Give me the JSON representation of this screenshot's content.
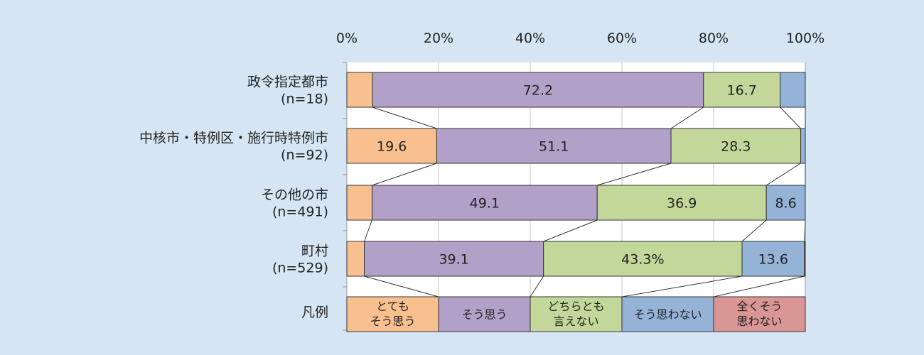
{
  "chart_data": {
    "type": "bar",
    "orientation": "horizontal",
    "stacked": "percent",
    "xlim": [
      0,
      100
    ],
    "x_ticks": [
      "0%",
      "20%",
      "40%",
      "60%",
      "80%",
      "100%"
    ],
    "grid": true,
    "categories": [
      {
        "name": "政令指定都市",
        "n": "(n=18)"
      },
      {
        "name": "中核市・特例区・施行時特例市",
        "n": "(n=92)"
      },
      {
        "name": "その他の市",
        "n": "(n=491)"
      },
      {
        "name": "町村",
        "n": "(n=529)"
      }
    ],
    "series": [
      {
        "name": "とてもそう思う",
        "lines": [
          "とても",
          "そう思う"
        ],
        "color": "#f9c08f",
        "values": [
          5.6,
          19.6,
          5.5,
          3.8
        ],
        "labels": [
          "",
          "19.6",
          "",
          ""
        ]
      },
      {
        "name": "そう思う",
        "lines": [
          "そう思う"
        ],
        "color": "#b1a0c7",
        "values": [
          72.2,
          51.1,
          49.1,
          39.1
        ],
        "labels": [
          "72.2",
          "51.1",
          "49.1",
          "39.1"
        ]
      },
      {
        "name": "どちらとも言えない",
        "lines": [
          "どちらとも",
          "言えない"
        ],
        "color": "#c4d79b",
        "values": [
          16.7,
          28.3,
          36.9,
          43.3
        ],
        "labels": [
          "16.7",
          "28.3",
          "36.9",
          "43.3%"
        ]
      },
      {
        "name": "そう思わない",
        "lines": [
          "そう思わない"
        ],
        "color": "#95b3d7",
        "values": [
          5.5,
          1.0,
          8.6,
          13.6
        ],
        "labels": [
          "",
          "",
          "8.6",
          "13.6"
        ]
      },
      {
        "name": "全くそう思わない",
        "lines": [
          "全くそう",
          "思わない"
        ],
        "color": "#da9694",
        "values": [
          0,
          0,
          0,
          0.2
        ],
        "labels": [
          "",
          "",
          "",
          ""
        ]
      }
    ],
    "legend": {
      "label": "凡例",
      "placement": "bottom-row"
    }
  }
}
